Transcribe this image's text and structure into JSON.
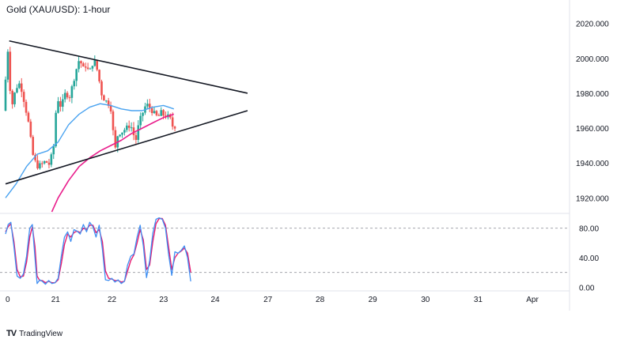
{
  "header": {
    "title": "Gold (XAU/USD): 1-hour"
  },
  "footer": {
    "brand": "TradingView",
    "logo_icon": "tradingview-logo-icon"
  },
  "colors": {
    "bull": "#26a69a",
    "bear": "#ef5350",
    "sma100": "#4aa3f0",
    "sma200": "#e91e8c",
    "stoch_k": "#3f8ff2",
    "stoch_d": "#e8196e",
    "trendline": "#131722",
    "axis_text": "#131722",
    "divider": "#e0e3eb"
  },
  "chart_data": [
    {
      "type": "candlestick",
      "title": "Gold (XAU/USD): 1-hour",
      "ylim": [
        1912,
        2028
      ],
      "y_ticks": [
        "2020.000",
        "2000.000",
        "1980.000",
        "1960.000",
        "1940.000",
        "1920.000"
      ],
      "x_ticks": [
        "0",
        "21",
        "22",
        "23",
        "24",
        "27",
        "28",
        "29",
        "30",
        "31",
        "Apr"
      ],
      "price_path": [
        [
          0,
          1970
        ],
        [
          0.03,
          1980
        ],
        [
          0.08,
          2009
        ],
        [
          0.11,
          1990
        ],
        [
          0.16,
          1972
        ],
        [
          0.24,
          1983
        ],
        [
          0.32,
          1986
        ],
        [
          0.4,
          1975
        ],
        [
          0.48,
          1963
        ],
        [
          0.56,
          1945
        ],
        [
          0.64,
          1938
        ],
        [
          0.72,
          1939
        ],
        [
          0.8,
          1941
        ],
        [
          0.88,
          1939
        ],
        [
          0.96,
          1950
        ],
        [
          1.02,
          1978
        ],
        [
          1.1,
          1972
        ],
        [
          1.18,
          1980
        ],
        [
          1.26,
          1978
        ],
        [
          1.32,
          1985
        ],
        [
          1.4,
          1995
        ],
        [
          1.46,
          2001
        ],
        [
          1.5,
          1993
        ],
        [
          1.56,
          1996
        ],
        [
          1.64,
          1992
        ],
        [
          1.72,
          1999
        ],
        [
          1.76,
          1997
        ],
        [
          1.82,
          1988
        ],
        [
          1.88,
          1978
        ],
        [
          1.94,
          1976
        ],
        [
          2.0,
          1974
        ],
        [
          2.06,
          1970
        ],
        [
          2.1,
          1953
        ],
        [
          2.14,
          1947
        ],
        [
          2.18,
          1957
        ],
        [
          2.26,
          1958
        ],
        [
          2.34,
          1960
        ],
        [
          2.42,
          1962
        ],
        [
          2.48,
          1956
        ],
        [
          2.52,
          1953
        ],
        [
          2.58,
          1963
        ],
        [
          2.64,
          1968
        ],
        [
          2.72,
          1974
        ],
        [
          2.8,
          1971
        ],
        [
          2.88,
          1968
        ],
        [
          2.94,
          1966
        ],
        [
          3.0,
          1969
        ],
        [
          3.06,
          1967
        ],
        [
          3.12,
          1967
        ],
        [
          3.18,
          1965
        ],
        [
          3.22,
          1961
        ]
      ],
      "trendlines": [
        {
          "name": "",
          "points": [
            [
              0.07,
              2010
            ],
            [
              4.6,
              1980
            ]
          ]
        },
        {
          "name": "",
          "points": [
            [
              0.0,
              1928
            ],
            [
              4.6,
              1970
            ]
          ]
        }
      ],
      "sma_100": [
        [
          0.0,
          1920
        ],
        [
          0.2,
          1928
        ],
        [
          0.4,
          1938
        ],
        [
          0.6,
          1945
        ],
        [
          0.8,
          1947
        ],
        [
          1.0,
          1952
        ],
        [
          1.2,
          1962
        ],
        [
          1.4,
          1968
        ],
        [
          1.6,
          1972
        ],
        [
          1.8,
          1974
        ],
        [
          2.0,
          1973
        ],
        [
          2.2,
          1971
        ],
        [
          2.4,
          1970
        ],
        [
          2.6,
          1970
        ],
        [
          2.8,
          1972
        ],
        [
          3.0,
          1973
        ],
        [
          3.1,
          1972
        ],
        [
          3.2,
          1971
        ]
      ],
      "sma_200": [
        [
          0.88,
          1912
        ],
        [
          1.0,
          1920
        ],
        [
          1.2,
          1930
        ],
        [
          1.4,
          1938
        ],
        [
          1.6,
          1943
        ],
        [
          1.8,
          1947
        ],
        [
          2.0,
          1950
        ],
        [
          2.2,
          1953
        ],
        [
          2.4,
          1957
        ],
        [
          2.6,
          1960
        ],
        [
          2.8,
          1963
        ],
        [
          3.0,
          1966
        ],
        [
          3.1,
          1967
        ],
        [
          3.2,
          1968
        ]
      ]
    },
    {
      "type": "line",
      "name": "",
      "ylim": [
        -5,
        100
      ],
      "y_ticks": [
        "80.00",
        "40.00",
        "0.00"
      ],
      "reference_lines": [
        80,
        20
      ],
      "k": [
        [
          0.0,
          72
        ],
        [
          0.05,
          85
        ],
        [
          0.1,
          88
        ],
        [
          0.16,
          55
        ],
        [
          0.22,
          15
        ],
        [
          0.28,
          12
        ],
        [
          0.34,
          18
        ],
        [
          0.4,
          42
        ],
        [
          0.46,
          80
        ],
        [
          0.51,
          85
        ],
        [
          0.56,
          40
        ],
        [
          0.6,
          5
        ],
        [
          0.65,
          10
        ],
        [
          0.7,
          8
        ],
        [
          0.76,
          4
        ],
        [
          0.82,
          9
        ],
        [
          0.88,
          5
        ],
        [
          0.94,
          6
        ],
        [
          1.0,
          12
        ],
        [
          1.06,
          42
        ],
        [
          1.12,
          68
        ],
        [
          1.18,
          75
        ],
        [
          1.24,
          62
        ],
        [
          1.3,
          78
        ],
        [
          1.36,
          76
        ],
        [
          1.42,
          72
        ],
        [
          1.48,
          85
        ],
        [
          1.54,
          75
        ],
        [
          1.6,
          88
        ],
        [
          1.66,
          82
        ],
        [
          1.72,
          68
        ],
        [
          1.78,
          84
        ],
        [
          1.84,
          52
        ],
        [
          1.9,
          10
        ],
        [
          1.96,
          9
        ],
        [
          2.02,
          12
        ],
        [
          2.08,
          7
        ],
        [
          2.14,
          10
        ],
        [
          2.2,
          5
        ],
        [
          2.26,
          8
        ],
        [
          2.32,
          30
        ],
        [
          2.38,
          42
        ],
        [
          2.44,
          45
        ],
        [
          2.5,
          68
        ],
        [
          2.56,
          84
        ],
        [
          2.62,
          56
        ],
        [
          2.68,
          13
        ],
        [
          2.74,
          36
        ],
        [
          2.8,
          73
        ],
        [
          2.86,
          92
        ],
        [
          2.92,
          94
        ],
        [
          2.98,
          92
        ],
        [
          3.04,
          80
        ],
        [
          3.1,
          44
        ],
        [
          3.16,
          16
        ],
        [
          3.22,
          48
        ],
        [
          3.28,
          46
        ],
        [
          3.34,
          50
        ],
        [
          3.4,
          56
        ],
        [
          3.46,
          40
        ],
        [
          3.52,
          8
        ]
      ],
      "d": [
        [
          0.0,
          75
        ],
        [
          0.05,
          82
        ],
        [
          0.1,
          86
        ],
        [
          0.16,
          62
        ],
        [
          0.22,
          24
        ],
        [
          0.28,
          14
        ],
        [
          0.34,
          15
        ],
        [
          0.4,
          34
        ],
        [
          0.46,
          68
        ],
        [
          0.51,
          82
        ],
        [
          0.56,
          55
        ],
        [
          0.6,
          15
        ],
        [
          0.65,
          9
        ],
        [
          0.7,
          9
        ],
        [
          0.76,
          6
        ],
        [
          0.82,
          8
        ],
        [
          0.88,
          6
        ],
        [
          0.94,
          6
        ],
        [
          1.0,
          10
        ],
        [
          1.06,
          32
        ],
        [
          1.12,
          58
        ],
        [
          1.18,
          72
        ],
        [
          1.24,
          68
        ],
        [
          1.3,
          74
        ],
        [
          1.36,
          76
        ],
        [
          1.42,
          74
        ],
        [
          1.48,
          80
        ],
        [
          1.54,
          78
        ],
        [
          1.6,
          84
        ],
        [
          1.66,
          84
        ],
        [
          1.72,
          74
        ],
        [
          1.78,
          78
        ],
        [
          1.84,
          62
        ],
        [
          1.9,
          22
        ],
        [
          1.96,
          12
        ],
        [
          2.02,
          11
        ],
        [
          2.08,
          9
        ],
        [
          2.14,
          9
        ],
        [
          2.2,
          7
        ],
        [
          2.26,
          8
        ],
        [
          2.32,
          22
        ],
        [
          2.38,
          36
        ],
        [
          2.44,
          44
        ],
        [
          2.5,
          60
        ],
        [
          2.56,
          78
        ],
        [
          2.62,
          64
        ],
        [
          2.68,
          24
        ],
        [
          2.74,
          30
        ],
        [
          2.8,
          62
        ],
        [
          2.86,
          86
        ],
        [
          2.92,
          93
        ],
        [
          2.98,
          93
        ],
        [
          3.04,
          84
        ],
        [
          3.1,
          54
        ],
        [
          3.16,
          24
        ],
        [
          3.22,
          40
        ],
        [
          3.28,
          46
        ],
        [
          3.34,
          49
        ],
        [
          3.4,
          53
        ],
        [
          3.46,
          46
        ],
        [
          3.52,
          20
        ]
      ]
    }
  ]
}
